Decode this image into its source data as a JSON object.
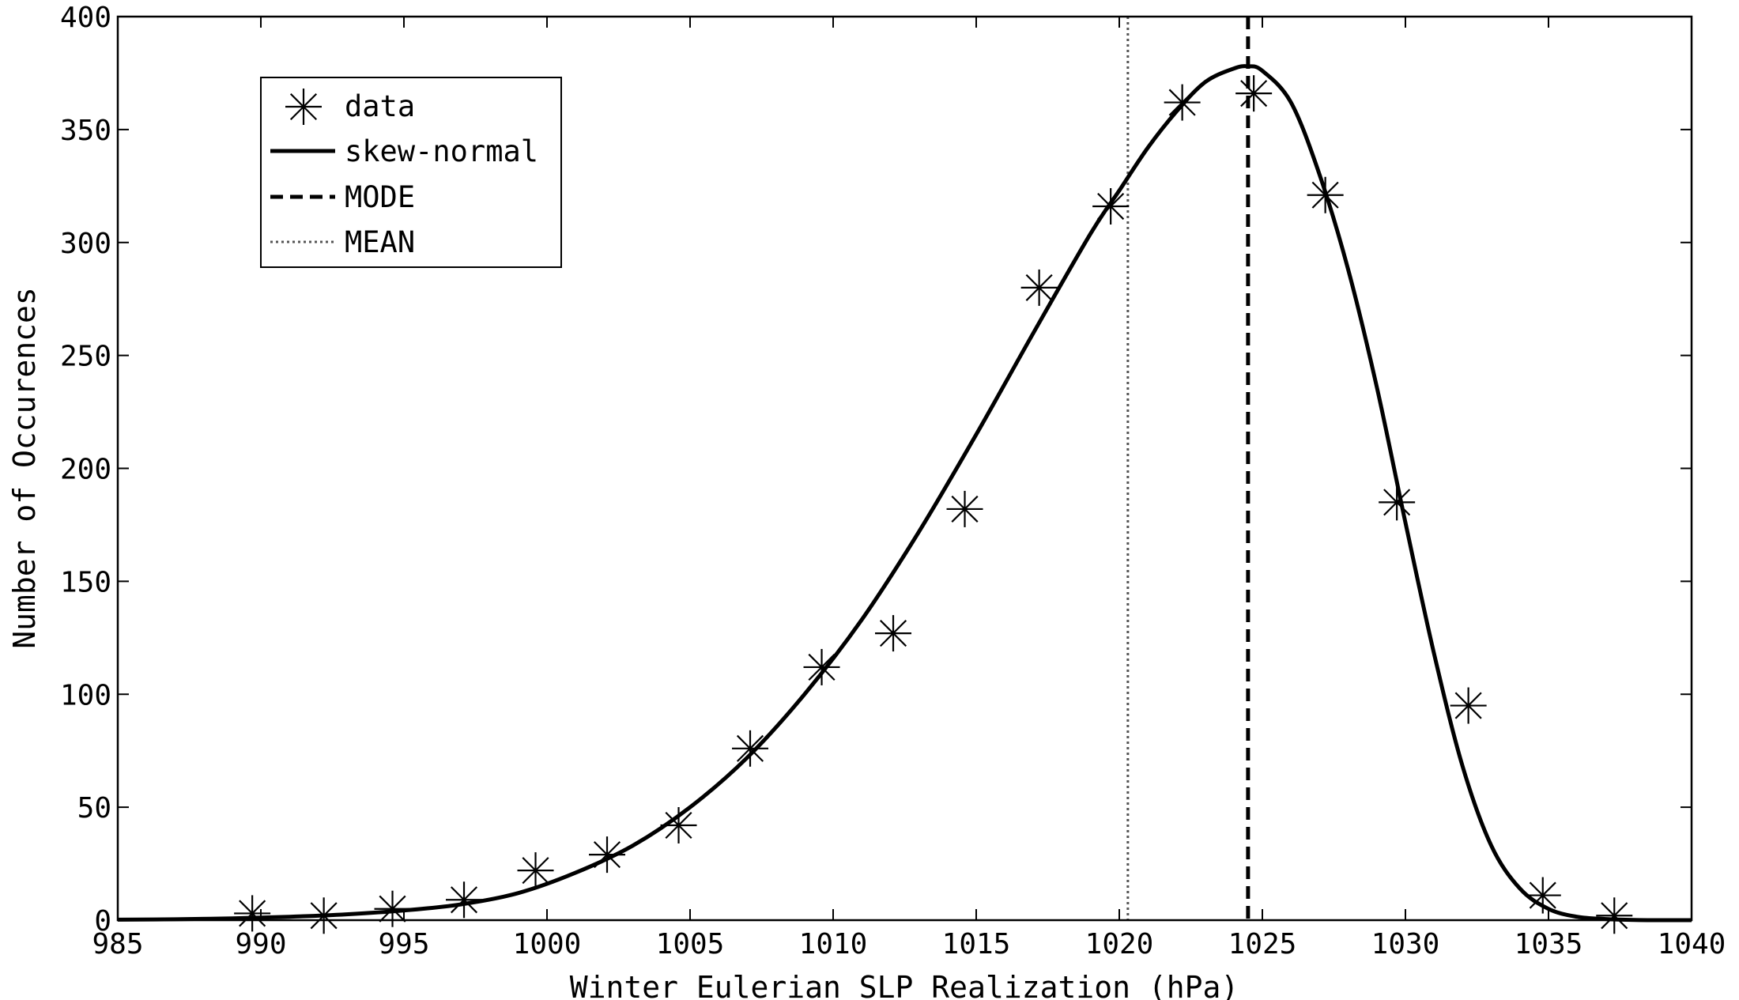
{
  "chart_data": {
    "type": "line",
    "title": "",
    "xlabel": "Winter Eulerian SLP Realization (hPa)",
    "ylabel": "Number of Occurences",
    "xlim": [
      985,
      1040
    ],
    "ylim": [
      0,
      400
    ],
    "xticks": [
      985,
      990,
      995,
      1000,
      1005,
      1010,
      1015,
      1020,
      1025,
      1030,
      1035,
      1040
    ],
    "yticks": [
      0,
      50,
      100,
      150,
      200,
      250,
      300,
      350,
      400
    ],
    "grid": false,
    "legend_position": "top-left",
    "series": [
      {
        "name": "data",
        "style": "markers-asterisk",
        "color": "#000000",
        "x": [
          989.7,
          992.2,
          994.6,
          997.1,
          999.6,
          1002.1,
          1004.6,
          1007.1,
          1009.6,
          1012.1,
          1014.6,
          1017.2,
          1019.7,
          1022.2,
          1024.7,
          1027.2,
          1029.7,
          1032.2,
          1034.8,
          1037.3
        ],
        "y": [
          3,
          2,
          5,
          9,
          22,
          29,
          42,
          76,
          112,
          127,
          182,
          280,
          316,
          362,
          366,
          321,
          185,
          95,
          11,
          2
        ]
      },
      {
        "name": "skew-normal",
        "style": "solid",
        "color": "#000000",
        "x": [
          985,
          987,
          989,
          991,
          993,
          995,
          997,
          999,
          1001,
          1003,
          1005,
          1007,
          1009,
          1011,
          1013,
          1015,
          1017,
          1019,
          1020,
          1021,
          1022,
          1023,
          1024,
          1024.5,
          1025,
          1026,
          1027,
          1028,
          1029,
          1030,
          1031,
          1032,
          1033,
          1034,
          1035,
          1036,
          1037,
          1038,
          1039,
          1040
        ],
        "y": [
          0.2,
          0.4,
          0.8,
          1.5,
          2.6,
          4.3,
          7,
          12,
          21,
          33,
          50,
          72,
          100,
          133,
          172,
          215,
          260,
          304,
          323,
          342,
          358,
          371,
          377,
          378,
          376,
          362,
          330,
          288,
          236,
          176,
          118,
          68,
          33,
          14,
          5,
          1.5,
          0.5,
          0.1,
          0,
          0
        ]
      },
      {
        "name": "MODE",
        "style": "dashed",
        "color": "#000000",
        "x_value": 1024.5
      },
      {
        "name": "MEAN",
        "style": "dotted",
        "color": "#555555",
        "x_value": 1020.3
      }
    ]
  }
}
